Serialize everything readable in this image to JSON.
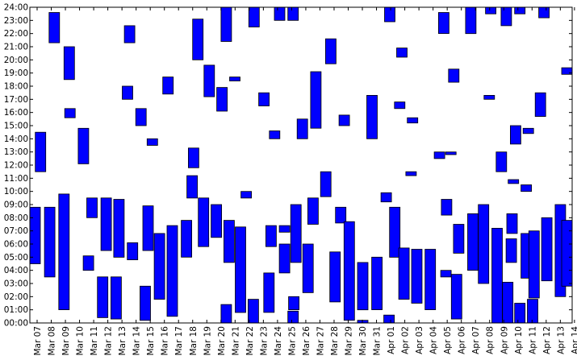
{
  "chart_data": {
    "type": "bar",
    "subtype": "floating-range-bars",
    "title": "",
    "xlabel": "",
    "ylabel": "",
    "ylim": [
      0,
      24
    ],
    "grid": false,
    "bar_color": "#0000ff",
    "edge_color": "#000000",
    "y_ticks": [
      "00:00",
      "01:00",
      "02:00",
      "03:00",
      "04:00",
      "05:00",
      "06:00",
      "07:00",
      "08:00",
      "09:00",
      "10:00",
      "11:00",
      "12:00",
      "13:00",
      "14:00",
      "15:00",
      "16:00",
      "17:00",
      "18:00",
      "19:00",
      "20:00",
      "21:00",
      "22:00",
      "23:00",
      "24:00"
    ],
    "x_ticks": [
      "Mar 07",
      "Mar 08",
      "Mar 09",
      "Mar 10",
      "Mar 11",
      "Mar 12",
      "Mar 13",
      "Mar 14",
      "Mar 15",
      "Mar 16",
      "Mar 17",
      "Mar 18",
      "Mar 19",
      "Mar 20",
      "Mar 21",
      "Mar 22",
      "Mar 23",
      "Mar 24",
      "Mar 25",
      "Mar 26",
      "Mar 27",
      "Mar 28",
      "Mar 29",
      "Mar 30",
      "Mar 31",
      "Apr 01",
      "Apr 02",
      "Apr 03",
      "Apr 04",
      "Apr 05",
      "Apr 06",
      "Apr 07",
      "Apr 08",
      "Apr 09",
      "Apr 10",
      "Apr 11",
      "Apr 12",
      "Apr 13",
      "Apr 14"
    ],
    "x_domain": [
      6.65,
      44.8
    ],
    "bars": [
      {
        "x": 6.65,
        "start": 4.5,
        "end": 8.8
      },
      {
        "x": 7.03,
        "start": 11.5,
        "end": 14.5
      },
      {
        "x": 7.68,
        "start": 3.5,
        "end": 8.8
      },
      {
        "x": 8.0,
        "start": 21.3,
        "end": 23.6
      },
      {
        "x": 8.68,
        "start": 1.0,
        "end": 9.8
      },
      {
        "x": 9.05,
        "start": 18.5,
        "end": 21.0
      },
      {
        "x": 9.1,
        "start": 15.6,
        "end": 16.3
      },
      {
        "x": 10.05,
        "start": 12.1,
        "end": 14.8
      },
      {
        "x": 10.4,
        "start": 4.0,
        "end": 5.1
      },
      {
        "x": 10.65,
        "start": 8.0,
        "end": 9.5
      },
      {
        "x": 11.4,
        "start": 0.4,
        "end": 3.5
      },
      {
        "x": 11.65,
        "start": 5.5,
        "end": 9.5
      },
      {
        "x": 12.35,
        "start": 0.3,
        "end": 3.5
      },
      {
        "x": 12.55,
        "start": 5.0,
        "end": 9.4
      },
      {
        "x": 13.15,
        "start": 17.0,
        "end": 18.0
      },
      {
        "x": 13.3,
        "start": 21.3,
        "end": 22.6
      },
      {
        "x": 13.5,
        "start": 4.8,
        "end": 6.1
      },
      {
        "x": 14.1,
        "start": 15.0,
        "end": 16.3
      },
      {
        "x": 14.4,
        "start": 0.2,
        "end": 2.8
      },
      {
        "x": 14.6,
        "start": 5.5,
        "end": 8.9
      },
      {
        "x": 14.9,
        "start": 13.5,
        "end": 14.0
      },
      {
        "x": 15.4,
        "start": 1.8,
        "end": 6.8
      },
      {
        "x": 16.0,
        "start": 17.4,
        "end": 18.7
      },
      {
        "x": 16.3,
        "start": 0.5,
        "end": 7.4
      },
      {
        "x": 17.3,
        "start": 5.0,
        "end": 7.8
      },
      {
        "x": 17.7,
        "start": 9.5,
        "end": 11.2
      },
      {
        "x": 17.8,
        "start": 11.8,
        "end": 13.3
      },
      {
        "x": 18.1,
        "start": 20.0,
        "end": 23.1
      },
      {
        "x": 18.5,
        "start": 5.8,
        "end": 9.5
      },
      {
        "x": 18.9,
        "start": 17.2,
        "end": 19.6
      },
      {
        "x": 19.4,
        "start": 6.5,
        "end": 9.0
      },
      {
        "x": 19.8,
        "start": 16.1,
        "end": 17.9
      },
      {
        "x": 20.1,
        "start": 21.4,
        "end": 24.0
      },
      {
        "x": 20.1,
        "start": 0.0,
        "end": 1.4
      },
      {
        "x": 20.3,
        "start": 4.6,
        "end": 7.8
      },
      {
        "x": 20.7,
        "start": 18.4,
        "end": 18.7
      },
      {
        "x": 21.1,
        "start": 0.8,
        "end": 7.3
      },
      {
        "x": 21.5,
        "start": 9.5,
        "end": 10.0
      },
      {
        "x": 22.0,
        "start": 0.0,
        "end": 1.8
      },
      {
        "x": 22.05,
        "start": 22.5,
        "end": 24.0
      },
      {
        "x": 22.75,
        "start": 16.5,
        "end": 17.5
      },
      {
        "x": 23.1,
        "start": 0.8,
        "end": 3.8
      },
      {
        "x": 23.25,
        "start": 5.8,
        "end": 7.4
      },
      {
        "x": 23.5,
        "start": 14.0,
        "end": 14.6
      },
      {
        "x": 23.85,
        "start": 23.0,
        "end": 24.0
      },
      {
        "x": 24.2,
        "start": 3.8,
        "end": 6.0
      },
      {
        "x": 24.2,
        "start": 6.9,
        "end": 7.4
      },
      {
        "x": 24.8,
        "start": 23.0,
        "end": 24.0
      },
      {
        "x": 24.8,
        "start": 0.0,
        "end": 0.9
      },
      {
        "x": 24.85,
        "start": 1.0,
        "end": 2.0
      },
      {
        "x": 25.0,
        "start": 4.6,
        "end": 9.0
      },
      {
        "x": 25.45,
        "start": 14.0,
        "end": 15.5
      },
      {
        "x": 25.85,
        "start": 2.3,
        "end": 6.0
      },
      {
        "x": 26.2,
        "start": 7.5,
        "end": 9.5
      },
      {
        "x": 26.4,
        "start": 14.8,
        "end": 19.1
      },
      {
        "x": 27.1,
        "start": 9.6,
        "end": 11.5
      },
      {
        "x": 27.45,
        "start": 19.7,
        "end": 21.6
      },
      {
        "x": 27.75,
        "start": 1.6,
        "end": 5.4
      },
      {
        "x": 28.15,
        "start": 7.6,
        "end": 8.8
      },
      {
        "x": 28.4,
        "start": 15.0,
        "end": 15.8
      },
      {
        "x": 28.75,
        "start": 0.2,
        "end": 7.7
      },
      {
        "x": 29.7,
        "start": 1.0,
        "end": 4.6
      },
      {
        "x": 29.7,
        "start": 0.0,
        "end": 0.2
      },
      {
        "x": 30.35,
        "start": 14.0,
        "end": 17.3
      },
      {
        "x": 30.7,
        "start": 1.0,
        "end": 5.0
      },
      {
        "x": 31.35,
        "start": 9.2,
        "end": 9.9
      },
      {
        "x": 31.55,
        "start": 0.0,
        "end": 0.6
      },
      {
        "x": 31.6,
        "start": 22.9,
        "end": 24.0
      },
      {
        "x": 31.95,
        "start": 5.0,
        "end": 8.8
      },
      {
        "x": 32.3,
        "start": 16.3,
        "end": 16.8
      },
      {
        "x": 32.45,
        "start": 20.2,
        "end": 20.9
      },
      {
        "x": 32.6,
        "start": 1.8,
        "end": 5.7
      },
      {
        "x": 33.1,
        "start": 11.2,
        "end": 11.5
      },
      {
        "x": 33.2,
        "start": 15.2,
        "end": 15.6
      },
      {
        "x": 33.5,
        "start": 1.5,
        "end": 5.6
      },
      {
        "x": 34.45,
        "start": 1.0,
        "end": 5.6
      },
      {
        "x": 35.1,
        "start": 12.5,
        "end": 13.0
      },
      {
        "x": 35.4,
        "start": 22.0,
        "end": 23.6
      },
      {
        "x": 35.55,
        "start": 3.5,
        "end": 4.0
      },
      {
        "x": 35.9,
        "start": 12.8,
        "end": 13.0
      },
      {
        "x": 35.6,
        "start": 8.2,
        "end": 9.4
      },
      {
        "x": 36.1,
        "start": 18.3,
        "end": 19.3
      },
      {
        "x": 36.3,
        "start": 0.3,
        "end": 3.7
      },
      {
        "x": 36.45,
        "start": 5.3,
        "end": 7.5
      },
      {
        "x": 37.3,
        "start": 22.0,
        "end": 24.0
      },
      {
        "x": 37.45,
        "start": 4.0,
        "end": 8.3
      },
      {
        "x": 38.2,
        "start": 3.0,
        "end": 9.0
      },
      {
        "x": 38.6,
        "start": 17.0,
        "end": 17.3
      },
      {
        "x": 38.7,
        "start": 23.5,
        "end": 24.0
      },
      {
        "x": 39.15,
        "start": 0.0,
        "end": 7.2
      },
      {
        "x": 39.45,
        "start": 11.5,
        "end": 13.0
      },
      {
        "x": 39.8,
        "start": 22.6,
        "end": 24.0
      },
      {
        "x": 39.9,
        "start": 0.0,
        "end": 3.1
      },
      {
        "x": 40.15,
        "start": 4.6,
        "end": 6.4
      },
      {
        "x": 40.2,
        "start": 6.8,
        "end": 8.3
      },
      {
        "x": 40.3,
        "start": 10.6,
        "end": 10.9
      },
      {
        "x": 40.45,
        "start": 13.6,
        "end": 15.0
      },
      {
        "x": 40.75,
        "start": 23.5,
        "end": 24.0
      },
      {
        "x": 40.75,
        "start": 0.0,
        "end": 1.5
      },
      {
        "x": 41.2,
        "start": 3.4,
        "end": 6.8
      },
      {
        "x": 41.2,
        "start": 10.0,
        "end": 10.5
      },
      {
        "x": 41.35,
        "start": 14.4,
        "end": 14.8
      },
      {
        "x": 41.65,
        "start": 0.0,
        "end": 1.8
      },
      {
        "x": 41.75,
        "start": 1.9,
        "end": 7.0
      },
      {
        "x": 42.2,
        "start": 15.7,
        "end": 17.5
      },
      {
        "x": 42.65,
        "start": 3.2,
        "end": 8.0
      },
      {
        "x": 42.45,
        "start": 23.2,
        "end": 24.0
      },
      {
        "x": 43.6,
        "start": 2.0,
        "end": 9.0
      },
      {
        "x": 44.2,
        "start": 18.9,
        "end": 19.4
      },
      {
        "x": 44.5,
        "start": 2.8,
        "end": 7.8
      }
    ]
  }
}
